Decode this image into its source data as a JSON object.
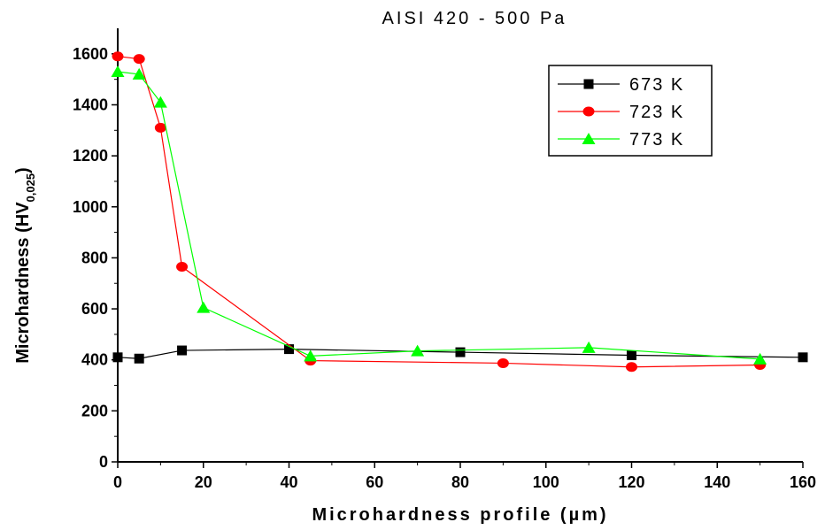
{
  "chart_data": {
    "type": "line",
    "title": "AISI 420 - 500 Pa",
    "xlabel": "Microhardness profile (µm)",
    "ylabel": "Microhardness (HV",
    "ylabel_sub": "0,025",
    "ylabel_close": ")",
    "xlim": [
      0,
      160
    ],
    "ylim": [
      0,
      1700
    ],
    "xticks": [
      0,
      20,
      40,
      60,
      80,
      100,
      120,
      140,
      160
    ],
    "yticks": [
      0,
      200,
      400,
      600,
      800,
      1000,
      1200,
      1400,
      1600
    ],
    "grid": false,
    "legend_position": "top-right",
    "series": [
      {
        "name": "673 K",
        "color": "#000000",
        "marker": "square",
        "x": [
          0,
          5,
          15,
          40,
          80,
          120,
          160
        ],
        "y": [
          410,
          405,
          437,
          442,
          430,
          418,
          410
        ]
      },
      {
        "name": "723 K",
        "color": "#ff0000",
        "marker": "circle",
        "x": [
          0,
          5,
          10,
          15,
          45,
          90,
          120,
          150
        ],
        "y": [
          1590,
          1580,
          1310,
          765,
          397,
          387,
          372,
          380
        ]
      },
      {
        "name": "773 K",
        "color": "#00ff00",
        "marker": "triangle",
        "x": [
          0,
          5,
          10,
          20,
          45,
          70,
          110,
          150
        ],
        "y": [
          1530,
          1520,
          1410,
          605,
          415,
          435,
          448,
          403
        ]
      }
    ]
  }
}
